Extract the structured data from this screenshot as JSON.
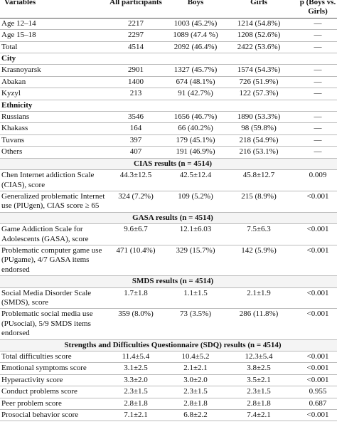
{
  "table": {
    "columns": [
      "Variables",
      "All participants",
      "Boys",
      "Girls",
      "p (Boys vs. Girls)"
    ],
    "rows": [
      {
        "cells": [
          "Age 12–14",
          "2217",
          "1003 (45.2%)",
          "1214 (54.8%)",
          "—"
        ]
      },
      {
        "cells": [
          "Age 15–18",
          "2297",
          "1089 (47.4 %)",
          "1208 (52.6%)",
          "—"
        ]
      },
      {
        "cells": [
          "Total",
          "4514",
          "2092 (46.4%)",
          "2422 (53.6%)",
          "—"
        ]
      },
      {
        "section": "City"
      },
      {
        "cells": [
          "Krasnoyarsk",
          "2901",
          "1327 (45.7%)",
          "1574 (54.3%)",
          "—"
        ]
      },
      {
        "cells": [
          "Abakan",
          "1400",
          "674 (48.1%)",
          "726 (51.9%)",
          "—"
        ]
      },
      {
        "cells": [
          "Kyzyl",
          "213",
          "91 (42.7%)",
          "122 (57.3%)",
          "—"
        ]
      },
      {
        "section": "Ethnicity"
      },
      {
        "cells": [
          "Russians",
          "3546",
          "1656 (46.7%)",
          "1890 (53.3%)",
          "—"
        ]
      },
      {
        "cells": [
          "Khakass",
          "164",
          "66 (40.2%)",
          "98 (59.8%)",
          "—"
        ]
      },
      {
        "cells": [
          "Tuvans",
          "397",
          "179 (45.1%)",
          "218 (54.9%)",
          "—"
        ]
      },
      {
        "cells": [
          "Others",
          "407",
          "191 (46.9%)",
          "216 (53.1%)",
          "—"
        ]
      },
      {
        "heading": "CIAS results (n = 4514)"
      },
      {
        "cells": [
          "Chen Internet addiction Scale (CIAS), score",
          "44.3±12.5",
          "42.5±12.4",
          "45.8±12.7",
          "0.009"
        ]
      },
      {
        "cells": [
          "Generalized problematic Internet use (PIUgen), CIAS score ≥ 65",
          "324 (7.2%)",
          "109 (5.2%)",
          "215 (8.9%)",
          "<0.001"
        ]
      },
      {
        "heading": "GASA results (n = 4514)"
      },
      {
        "cells": [
          "Game Addiction Scale for Adolescents (GASA), score",
          "9.6±6.7",
          "12.1±6.03",
          "7.5±6.3",
          "<0.001"
        ]
      },
      {
        "cells": [
          "Problematic computer game use (PUgame), 4/7 GASA items endorsed",
          "471 (10.4%)",
          "329 (15.7%)",
          "142 (5.9%)",
          "<0.001"
        ]
      },
      {
        "heading": "SMDS results (n = 4514)"
      },
      {
        "cells": [
          "Social Media Disorder Scale (SMDS), score",
          "1.7±1.8",
          "1.1±1.5",
          "2.1±1.9",
          "<0.001"
        ]
      },
      {
        "cells": [
          "Problematic social media use (PUsocial), 5/9 SMDS items endorsed",
          "359 (8.0%)",
          "73 (3.5%)",
          "286 (11.8%)",
          "<0.001"
        ]
      },
      {
        "heading": "Strengths and Difficulties Questionnaire (SDQ) results (n = 4514)"
      },
      {
        "cells": [
          "Total difficulties score",
          "11.4±5.4",
          "10.4±5.2",
          "12.3±5.4",
          "<0.001"
        ]
      },
      {
        "cells": [
          "Emotional symptoms score",
          "3.1±2.5",
          "2.1±2.1",
          "3.8±2.5",
          "<0.001"
        ]
      },
      {
        "cells": [
          "Hyperactivity score",
          "3.3±2.0",
          "3.0±2.0",
          "3.5±2.1",
          "<0.001"
        ]
      },
      {
        "cells": [
          "Conduct problems score",
          "2.3±1.5",
          "2.3±1.5",
          "2.3±1.5",
          "0.955"
        ]
      },
      {
        "cells": [
          "Peer problem score",
          "2.8±1.8",
          "2.8±1.8",
          "2.8±1.8",
          "0.687"
        ]
      },
      {
        "cells": [
          "Prosocial behavior score",
          "7.1±2.1",
          "6.8±2.2",
          "7.4±2.1",
          "<0.001"
        ]
      }
    ]
  }
}
